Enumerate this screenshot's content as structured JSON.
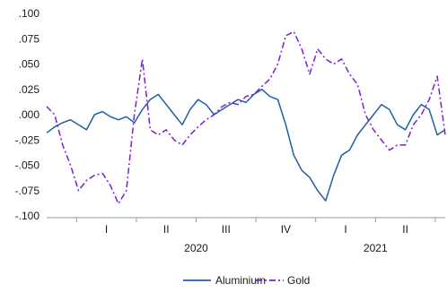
{
  "chart_data": {
    "type": "line",
    "ylim": [
      -0.1,
      0.1
    ],
    "xlim": [
      0,
      20
    ],
    "yticks": [
      {
        "value": 0.1,
        "label": ".100"
      },
      {
        "value": 0.075,
        "label": ".075"
      },
      {
        "value": 0.05,
        "label": ".050"
      },
      {
        "value": 0.025,
        "label": ".025"
      },
      {
        "value": 0.0,
        "label": ".000"
      },
      {
        "value": -0.025,
        "label": "-.025"
      },
      {
        "value": -0.05,
        "label": "-.050"
      },
      {
        "value": -0.075,
        "label": "-.075"
      },
      {
        "value": -0.1,
        "label": "-.100"
      }
    ],
    "quarter_ticks": [
      {
        "at": 3,
        "label": "I"
      },
      {
        "at": 6,
        "label": "II"
      },
      {
        "at": 9,
        "label": "III"
      },
      {
        "at": 12,
        "label": "IV"
      },
      {
        "at": 15,
        "label": "I"
      },
      {
        "at": 18,
        "label": "II"
      }
    ],
    "quarter_boundaries": [
      1.5,
      4.5,
      7.5,
      10.5,
      13.5,
      16.5,
      19.5
    ],
    "year_labels": [
      {
        "at": 7.5,
        "label": "2020"
      },
      {
        "at": 16.5,
        "label": "2021"
      }
    ],
    "grid": false,
    "legend_position": "bottom-center",
    "series": [
      {
        "name": "Aluminium",
        "color": "#1f5fa6",
        "style": "solid",
        "x": [
          0,
          0.4,
          0.8,
          1.2,
          1.6,
          2,
          2.4,
          2.8,
          3.2,
          3.6,
          4,
          4.4,
          4.8,
          5.2,
          5.6,
          6,
          6.4,
          6.8,
          7.2,
          7.6,
          8,
          8.4,
          8.8,
          9.2,
          9.6,
          10,
          10.4,
          10.8,
          11.2,
          11.6,
          12,
          12.4,
          12.8,
          13.2,
          13.6,
          14,
          14.4,
          14.8,
          15.2,
          15.6,
          16,
          16.4,
          16.8,
          17.2,
          17.6,
          18,
          18.4,
          18.8,
          19.2,
          19.6,
          20
        ],
        "y": [
          -0.018,
          -0.012,
          -0.008,
          -0.005,
          -0.01,
          -0.015,
          0.0,
          0.003,
          -0.002,
          -0.005,
          -0.002,
          -0.008,
          0.005,
          0.015,
          0.02,
          0.01,
          0.0,
          -0.01,
          0.005,
          0.015,
          0.01,
          0.0,
          0.005,
          0.01,
          0.015,
          0.012,
          0.02,
          0.025,
          0.018,
          0.015,
          -0.01,
          -0.04,
          -0.055,
          -0.062,
          -0.075,
          -0.085,
          -0.06,
          -0.04,
          -0.035,
          -0.02,
          -0.01,
          0.0,
          0.01,
          0.005,
          -0.01,
          -0.015,
          0.0,
          0.01,
          0.005,
          -0.02,
          -0.015
        ]
      },
      {
        "name": "Gold",
        "color": "#7b1fd1",
        "style": "dashdot",
        "x": [
          0,
          0.4,
          0.8,
          1.2,
          1.6,
          2,
          2.4,
          2.8,
          3.2,
          3.6,
          4,
          4.4,
          4.8,
          5.2,
          5.6,
          6,
          6.4,
          6.8,
          7.2,
          7.6,
          8,
          8.4,
          8.8,
          9.2,
          9.6,
          10,
          10.4,
          10.8,
          11.2,
          11.6,
          12,
          12.4,
          12.8,
          13.2,
          13.6,
          14,
          14.4,
          14.8,
          15.2,
          15.6,
          16,
          16.4,
          16.8,
          17.2,
          17.6,
          18,
          18.4,
          18.8,
          19.2,
          19.6,
          20
        ],
        "y": [
          0.008,
          0.0,
          -0.03,
          -0.05,
          -0.075,
          -0.065,
          -0.06,
          -0.058,
          -0.07,
          -0.088,
          -0.075,
          0.0,
          0.055,
          -0.015,
          -0.02,
          -0.015,
          -0.025,
          -0.03,
          -0.02,
          -0.012,
          -0.005,
          0.0,
          0.008,
          0.012,
          0.01,
          0.018,
          0.02,
          0.028,
          0.035,
          0.05,
          0.078,
          0.082,
          0.065,
          0.04,
          0.065,
          0.055,
          0.05,
          0.055,
          0.04,
          0.03,
          0.0,
          -0.015,
          -0.025,
          -0.035,
          -0.03,
          -0.03,
          -0.01,
          0.0,
          0.015,
          0.038,
          -0.02
        ]
      }
    ]
  }
}
